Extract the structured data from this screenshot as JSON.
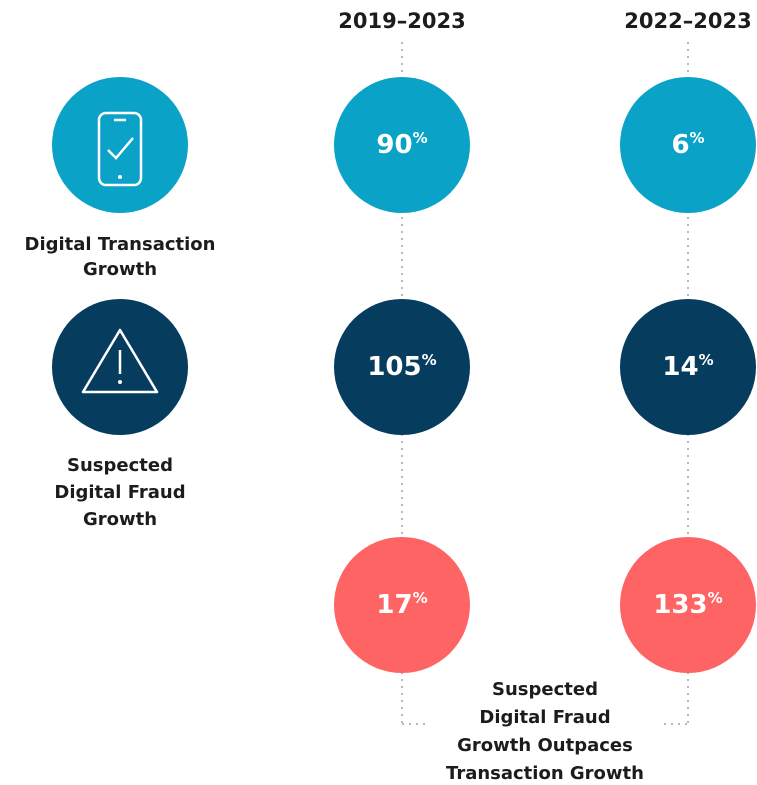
{
  "columns": [
    "2019–2023",
    "2022–2023"
  ],
  "rows": [
    {
      "label": [
        "Digital Transaction",
        "Growth"
      ],
      "cells": [
        {
          "value": "90",
          "unit": "%"
        },
        {
          "value": "6",
          "unit": "%"
        }
      ]
    },
    {
      "label": [
        "Suspected",
        "Digital Fraud",
        "Growth"
      ],
      "cells": [
        {
          "value": "105",
          "unit": "%"
        },
        {
          "value": "14",
          "unit": "%"
        }
      ]
    },
    {
      "cells": [
        {
          "value": "17",
          "unit": "%"
        },
        {
          "value": "133",
          "unit": "%"
        }
      ]
    }
  ],
  "footer": [
    "Suspected",
    "Digital Fraud",
    "Growth Outpaces",
    "Transaction Growth"
  ]
}
